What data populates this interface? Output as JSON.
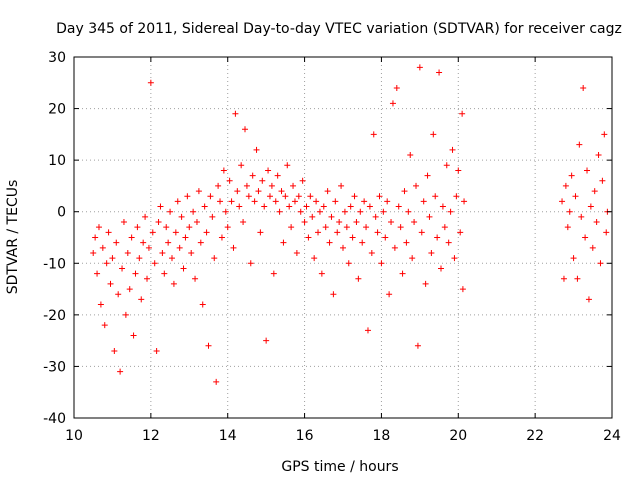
{
  "chart_data": {
    "type": "scatter",
    "title": "Day 345 of 2011, Sidereal Day-to-day VTEC variation (SDTVAR) for receiver cagz",
    "xlabel": "GPS time / hours",
    "ylabel": "SDTVAR / TECUs",
    "xlim": [
      10,
      24
    ],
    "ylim": [
      -40,
      30
    ],
    "xticks": [
      10,
      12,
      14,
      16,
      18,
      20,
      22,
      24
    ],
    "yticks": [
      -40,
      -30,
      -20,
      -10,
      0,
      10,
      20,
      30
    ],
    "xtick_labels": [
      "10",
      "12",
      "14",
      "16",
      "18",
      "20",
      "22",
      "24"
    ],
    "ytick_labels": [
      "-40",
      "-30",
      "-20",
      "-10",
      "0",
      "10",
      "20",
      "30"
    ],
    "grid": true,
    "marker": "plus",
    "series": [
      {
        "name": "SDTVAR",
        "color": "#ff0000",
        "points": [
          [
            10.5,
            -8
          ],
          [
            10.55,
            -5
          ],
          [
            10.6,
            -12
          ],
          [
            10.65,
            -3
          ],
          [
            10.7,
            -18
          ],
          [
            10.75,
            -7
          ],
          [
            10.8,
            -22
          ],
          [
            10.85,
            -10
          ],
          [
            10.9,
            -4
          ],
          [
            10.95,
            -14
          ],
          [
            11.0,
            -9
          ],
          [
            11.05,
            -27
          ],
          [
            11.1,
            -6
          ],
          [
            11.15,
            -16
          ],
          [
            11.2,
            -31
          ],
          [
            11.25,
            -11
          ],
          [
            11.3,
            -2
          ],
          [
            11.35,
            -20
          ],
          [
            11.4,
            -8
          ],
          [
            11.45,
            -15
          ],
          [
            11.5,
            -5
          ],
          [
            11.55,
            -24
          ],
          [
            11.6,
            -12
          ],
          [
            11.65,
            -3
          ],
          [
            11.7,
            -9
          ],
          [
            11.75,
            -17
          ],
          [
            11.8,
            -6
          ],
          [
            11.85,
            -1
          ],
          [
            11.9,
            -13
          ],
          [
            11.95,
            -7
          ],
          [
            12.0,
            25
          ],
          [
            12.05,
            -4
          ],
          [
            12.1,
            -10
          ],
          [
            12.15,
            -27
          ],
          [
            12.2,
            -2
          ],
          [
            12.25,
            1
          ],
          [
            12.3,
            -8
          ],
          [
            12.35,
            -12
          ],
          [
            12.4,
            -3
          ],
          [
            12.45,
            -6
          ],
          [
            12.5,
            0
          ],
          [
            12.55,
            -9
          ],
          [
            12.6,
            -14
          ],
          [
            12.65,
            -4
          ],
          [
            12.7,
            2
          ],
          [
            12.75,
            -7
          ],
          [
            12.8,
            -1
          ],
          [
            12.85,
            -11
          ],
          [
            12.9,
            -5
          ],
          [
            12.95,
            3
          ],
          [
            13.0,
            -3
          ],
          [
            13.05,
            -8
          ],
          [
            13.1,
            0
          ],
          [
            13.15,
            -13
          ],
          [
            13.2,
            -2
          ],
          [
            13.25,
            4
          ],
          [
            13.3,
            -6
          ],
          [
            13.35,
            -18
          ],
          [
            13.4,
            1
          ],
          [
            13.45,
            -4
          ],
          [
            13.5,
            -26
          ],
          [
            13.55,
            3
          ],
          [
            13.6,
            -1
          ],
          [
            13.65,
            -9
          ],
          [
            13.7,
            -33
          ],
          [
            13.75,
            5
          ],
          [
            13.8,
            2
          ],
          [
            13.85,
            -5
          ],
          [
            13.9,
            8
          ],
          [
            13.95,
            0
          ],
          [
            14.0,
            -3
          ],
          [
            14.05,
            6
          ],
          [
            14.1,
            2
          ],
          [
            14.15,
            -7
          ],
          [
            14.2,
            19
          ],
          [
            14.25,
            4
          ],
          [
            14.3,
            1
          ],
          [
            14.35,
            9
          ],
          [
            14.4,
            -2
          ],
          [
            14.45,
            16
          ],
          [
            14.5,
            5
          ],
          [
            14.55,
            3
          ],
          [
            14.6,
            -10
          ],
          [
            14.65,
            7
          ],
          [
            14.7,
            2
          ],
          [
            14.75,
            12
          ],
          [
            14.8,
            4
          ],
          [
            14.85,
            -4
          ],
          [
            14.9,
            6
          ],
          [
            14.95,
            1
          ],
          [
            15.0,
            -25
          ],
          [
            15.05,
            8
          ],
          [
            15.1,
            3
          ],
          [
            15.15,
            5
          ],
          [
            15.2,
            -12
          ],
          [
            15.25,
            2
          ],
          [
            15.3,
            7
          ],
          [
            15.35,
            0
          ],
          [
            15.4,
            4
          ],
          [
            15.45,
            -6
          ],
          [
            15.5,
            3
          ],
          [
            15.55,
            9
          ],
          [
            15.6,
            1
          ],
          [
            15.65,
            -3
          ],
          [
            15.7,
            5
          ],
          [
            15.75,
            2
          ],
          [
            15.8,
            -8
          ],
          [
            15.85,
            3
          ],
          [
            15.9,
            0
          ],
          [
            15.95,
            6
          ],
          [
            16.0,
            -2
          ],
          [
            16.05,
            1
          ],
          [
            16.1,
            -5
          ],
          [
            16.15,
            3
          ],
          [
            16.2,
            -1
          ],
          [
            16.25,
            -9
          ],
          [
            16.3,
            2
          ],
          [
            16.35,
            -4
          ],
          [
            16.4,
            0
          ],
          [
            16.45,
            -12
          ],
          [
            16.5,
            1
          ],
          [
            16.55,
            -3
          ],
          [
            16.6,
            4
          ],
          [
            16.65,
            -6
          ],
          [
            16.7,
            -1
          ],
          [
            16.75,
            -16
          ],
          [
            16.8,
            2
          ],
          [
            16.85,
            -4
          ],
          [
            16.9,
            -2
          ],
          [
            16.95,
            5
          ],
          [
            17.0,
            -7
          ],
          [
            17.05,
            0
          ],
          [
            17.1,
            -3
          ],
          [
            17.15,
            -10
          ],
          [
            17.2,
            1
          ],
          [
            17.25,
            -5
          ],
          [
            17.3,
            3
          ],
          [
            17.35,
            -2
          ],
          [
            17.4,
            -13
          ],
          [
            17.45,
            0
          ],
          [
            17.5,
            -6
          ],
          [
            17.55,
            2
          ],
          [
            17.6,
            -3
          ],
          [
            17.65,
            -23
          ],
          [
            17.7,
            1
          ],
          [
            17.75,
            -8
          ],
          [
            17.8,
            15
          ],
          [
            17.85,
            -1
          ],
          [
            17.9,
            -4
          ],
          [
            17.95,
            3
          ],
          [
            18.0,
            -10
          ],
          [
            18.05,
            0
          ],
          [
            18.1,
            -5
          ],
          [
            18.15,
            2
          ],
          [
            18.2,
            -16
          ],
          [
            18.25,
            -2
          ],
          [
            18.3,
            21
          ],
          [
            18.35,
            -7
          ],
          [
            18.4,
            24
          ],
          [
            18.45,
            1
          ],
          [
            18.5,
            -3
          ],
          [
            18.55,
            -12
          ],
          [
            18.6,
            4
          ],
          [
            18.65,
            -6
          ],
          [
            18.7,
            0
          ],
          [
            18.75,
            11
          ],
          [
            18.8,
            -9
          ],
          [
            18.85,
            -2
          ],
          [
            18.9,
            5
          ],
          [
            18.95,
            -26
          ],
          [
            19.0,
            28
          ],
          [
            19.05,
            -4
          ],
          [
            19.1,
            2
          ],
          [
            19.15,
            -14
          ],
          [
            19.2,
            7
          ],
          [
            19.25,
            -1
          ],
          [
            19.3,
            -8
          ],
          [
            19.35,
            15
          ],
          [
            19.4,
            3
          ],
          [
            19.45,
            -5
          ],
          [
            19.5,
            27
          ],
          [
            19.55,
            -11
          ],
          [
            19.6,
            1
          ],
          [
            19.65,
            -3
          ],
          [
            19.7,
            9
          ],
          [
            19.75,
            -6
          ],
          [
            19.8,
            0
          ],
          [
            19.85,
            12
          ],
          [
            19.9,
            -9
          ],
          [
            19.95,
            3
          ],
          [
            20.0,
            8
          ],
          [
            20.05,
            -4
          ],
          [
            20.1,
            19
          ],
          [
            20.12,
            -15
          ],
          [
            20.15,
            2
          ],
          [
            22.7,
            2
          ],
          [
            22.75,
            -13
          ],
          [
            22.8,
            5
          ],
          [
            22.85,
            -3
          ],
          [
            22.9,
            0
          ],
          [
            22.95,
            7
          ],
          [
            23.0,
            -9
          ],
          [
            23.05,
            3
          ],
          [
            23.1,
            -13
          ],
          [
            23.15,
            13
          ],
          [
            23.2,
            -1
          ],
          [
            23.25,
            24
          ],
          [
            23.3,
            -5
          ],
          [
            23.35,
            8
          ],
          [
            23.4,
            -17
          ],
          [
            23.45,
            1
          ],
          [
            23.5,
            -7
          ],
          [
            23.55,
            4
          ],
          [
            23.6,
            -2
          ],
          [
            23.65,
            11
          ],
          [
            23.7,
            -10
          ],
          [
            23.75,
            6
          ],
          [
            23.8,
            15
          ],
          [
            23.85,
            -4
          ],
          [
            23.88,
            0
          ]
        ]
      }
    ]
  }
}
